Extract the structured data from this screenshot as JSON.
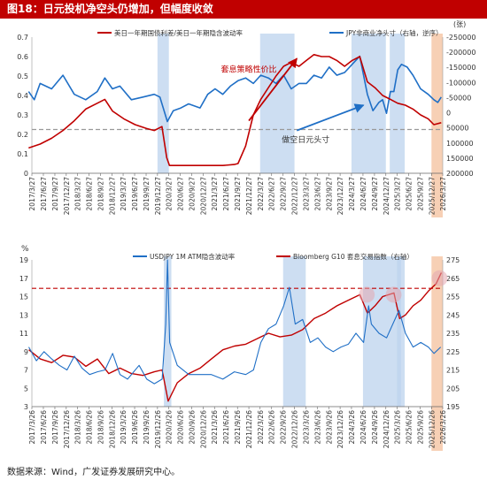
{
  "figure": {
    "title": "图18：日元投机净空头仍增加，但幅度收敛",
    "source": "数据来源：Wind，广发证券发展研究中心。"
  },
  "chart_data": [
    {
      "type": "line",
      "id": "top",
      "series": [
        {
          "name": "美日一年期国债利差/美日一年期隐含波动率",
          "axis": "left",
          "color": "#c00000"
        },
        {
          "name": "JPY非商业净头寸（右轴，逆序）",
          "axis": "right",
          "color": "#1f6fc6"
        }
      ],
      "x_ticks": [
        "2017/3/27",
        "2017/6/27",
        "2017/9/27",
        "2017/12/27",
        "2018/3/27",
        "2018/6/27",
        "2018/9/27",
        "2018/12/27",
        "2019/3/27",
        "2019/6/27",
        "2019/9/27",
        "2019/12/27",
        "2020/3/27",
        "2020/6/27",
        "2020/9/27",
        "2020/12/27",
        "2021/3/27",
        "2021/6/27",
        "2021/9/27",
        "2021/12/27",
        "2022/3/27",
        "2022/6/27",
        "2022/9/27",
        "2022/12/27",
        "2023/3/27",
        "2023/6/27",
        "2023/9/27",
        "2023/12/27",
        "2024/3/27",
        "2024/6/27",
        "2024/9/27",
        "2024/12/27",
        "2025/3/27",
        "2025/6/27",
        "2025/9/27",
        "2025/12/27",
        "2026/3/27"
      ],
      "left_axis": {
        "ylim": [
          0,
          0.7
        ],
        "ticks": [
          "0",
          "0.1",
          "0.2",
          "0.3",
          "0.4",
          "0.5",
          "0.6",
          "0.7"
        ]
      },
      "right_axis": {
        "unit": "(张)",
        "ylim": [
          -250000,
          250000
        ],
        "inverted": true,
        "ticks": [
          "-250000",
          "-200000",
          "-150000",
          "-100000",
          "-50000",
          "0",
          "50000",
          "100000",
          "150000",
          "200000"
        ]
      },
      "reference_line": {
        "axis": "left",
        "value": 0.225
      },
      "shaded_periods": [
        {
          "start": "2019/12/27",
          "end": "2020/3/27"
        },
        {
          "start": "2022/3/27",
          "end": "2022/12/27"
        },
        {
          "start": "2024/3/27",
          "end": "2024/12/27"
        },
        {
          "start": "2025/1/27",
          "end": "2025/5/27"
        }
      ],
      "highlight_period": {
        "start": "2025/12/27",
        "end": "2026/3/27"
      },
      "annotations": [
        {
          "text": "套息策略性价比",
          "x_date": "2021/12/27",
          "y_left": 0.52,
          "color": "#c00000"
        },
        {
          "text": "做空日元头寸",
          "x_date": "2023/3/27",
          "y_left": 0.16,
          "color": "#333333"
        }
      ],
      "arrows": [
        {
          "from": [
            "2021/12/27",
            0.27
          ],
          "to": [
            "2023/1/15",
            0.59
          ],
          "color": "#c00000"
        },
        {
          "from": [
            "2023/1/15",
            0.22
          ],
          "to": [
            "2024/7/1",
            0.35
          ],
          "color": "#1f6fc6"
        }
      ],
      "red_points": [
        [
          "2017/3/1",
          0.13
        ],
        [
          "2017/6/1",
          0.15
        ],
        [
          "2017/9/1",
          0.18
        ],
        [
          "2017/12/1",
          0.22
        ],
        [
          "2018/3/1",
          0.27
        ],
        [
          "2018/6/1",
          0.33
        ],
        [
          "2018/9/1",
          0.36
        ],
        [
          "2018/11/1",
          0.38
        ],
        [
          "2019/1/1",
          0.32
        ],
        [
          "2019/4/1",
          0.28
        ],
        [
          "2019/7/1",
          0.25
        ],
        [
          "2019/10/1",
          0.23
        ],
        [
          "2019/12/1",
          0.22
        ],
        [
          "2020/2/1",
          0.24
        ],
        [
          "2020/3/10",
          0.08
        ],
        [
          "2020/4/1",
          0.04
        ],
        [
          "2020/8/1",
          0.04
        ],
        [
          "2020/12/1",
          0.04
        ],
        [
          "2021/6/1",
          0.04
        ],
        [
          "2021/9/1",
          0.045
        ],
        [
          "2021/10/1",
          0.05
        ],
        [
          "2021/12/1",
          0.14
        ],
        [
          "2022/2/1",
          0.3
        ],
        [
          "2022/4/1",
          0.38
        ],
        [
          "2022/6/1",
          0.44
        ],
        [
          "2022/8/1",
          0.5
        ],
        [
          "2022/10/1",
          0.55
        ],
        [
          "2022/12/1",
          0.57
        ],
        [
          "2023/2/1",
          0.55
        ],
        [
          "2023/4/1",
          0.58
        ],
        [
          "2023/6/1",
          0.61
        ],
        [
          "2023/8/1",
          0.6
        ],
        [
          "2023/10/1",
          0.6
        ],
        [
          "2023/12/1",
          0.58
        ],
        [
          "2024/2/1",
          0.55
        ],
        [
          "2024/4/1",
          0.58
        ],
        [
          "2024/6/1",
          0.6
        ],
        [
          "2024/8/1",
          0.47
        ],
        [
          "2024/10/1",
          0.44
        ],
        [
          "2024/12/1",
          0.4
        ],
        [
          "2025/2/1",
          0.38
        ],
        [
          "2025/4/1",
          0.36
        ],
        [
          "2025/6/1",
          0.35
        ],
        [
          "2025/8/1",
          0.33
        ],
        [
          "2025/10/1",
          0.3
        ],
        [
          "2025/12/1",
          0.28
        ],
        [
          "2026/1/15",
          0.25
        ],
        [
          "2026/3/15",
          0.26
        ]
      ],
      "blue_points": [
        [
          "2017/3/1",
          -50000
        ],
        [
          "2017/4/15",
          -20000
        ],
        [
          "2017/6/1",
          -80000
        ],
        [
          "2017/9/1",
          -60000
        ],
        [
          "2017/12/1",
          -110000
        ],
        [
          "2018/3/1",
          -40000
        ],
        [
          "2018/6/1",
          -20000
        ],
        [
          "2018/9/1",
          -50000
        ],
        [
          "2018/11/1",
          -100000
        ],
        [
          "2019/1/1",
          -60000
        ],
        [
          "2019/3/1",
          -70000
        ],
        [
          "2019/6/1",
          -20000
        ],
        [
          "2019/9/1",
          -30000
        ],
        [
          "2019/12/1",
          -40000
        ],
        [
          "2020/1/15",
          -30000
        ],
        [
          "2020/3/15",
          60000
        ],
        [
          "2020/5/1",
          20000
        ],
        [
          "2020/7/1",
          10000
        ],
        [
          "2020/9/1",
          -5000
        ],
        [
          "2020/12/1",
          10000
        ],
        [
          "2021/2/1",
          -40000
        ],
        [
          "2021/4/1",
          -60000
        ],
        [
          "2021/6/1",
          -40000
        ],
        [
          "2021/8/1",
          -70000
        ],
        [
          "2021/10/1",
          -90000
        ],
        [
          "2021/12/1",
          -100000
        ],
        [
          "2022/2/1",
          -80000
        ],
        [
          "2022/4/1",
          -110000
        ],
        [
          "2022/6/1",
          -100000
        ],
        [
          "2022/8/1",
          -80000
        ],
        [
          "2022/10/1",
          -110000
        ],
        [
          "2022/12/1",
          -60000
        ],
        [
          "2023/2/1",
          -80000
        ],
        [
          "2023/4/1",
          -80000
        ],
        [
          "2023/6/1",
          -110000
        ],
        [
          "2023/8/1",
          -100000
        ],
        [
          "2023/10/1",
          -140000
        ],
        [
          "2023/12/1",
          -110000
        ],
        [
          "2024/2/1",
          -120000
        ],
        [
          "2024/4/1",
          -150000
        ],
        [
          "2024/6/1",
          -180000
        ],
        [
          "2024/8/1",
          -40000
        ],
        [
          "2024/9/15",
          20000
        ],
        [
          "2024/11/1",
          -10000
        ],
        [
          "2024/12/1",
          -20000
        ],
        [
          "2025/1/1",
          30000
        ],
        [
          "2025/2/1",
          -50000
        ],
        [
          "2025/3/1",
          -50000
        ],
        [
          "2025/4/1",
          -130000
        ],
        [
          "2025/5/1",
          -150000
        ],
        [
          "2025/6/15",
          -140000
        ],
        [
          "2025/8/1",
          -110000
        ],
        [
          "2025/10/1",
          -60000
        ],
        [
          "2025/12/1",
          -40000
        ],
        [
          "2026/1/15",
          -20000
        ],
        [
          "2026/2/15",
          -10000
        ],
        [
          "2026/3/15",
          -30000
        ]
      ]
    },
    {
      "type": "line",
      "id": "bottom",
      "series": [
        {
          "name": "USDJPY 1M ATM隐含波动率",
          "axis": "left",
          "color": "#1f6fc6"
        },
        {
          "name": "Bloomberg G10 套息交易指数（右轴）",
          "axis": "right",
          "color": "#c00000"
        }
      ],
      "x_ticks": [
        "2017/3/26",
        "2017/6/26",
        "2017/9/26",
        "2017/12/26",
        "2018/3/26",
        "2018/6/26",
        "2018/9/26",
        "2018/12/26",
        "2019/3/26",
        "2019/6/26",
        "2019/9/26",
        "2019/12/26",
        "2020/3/26",
        "2020/6/26",
        "2020/9/26",
        "2020/12/26",
        "2021/3/26",
        "2021/6/26",
        "2021/9/26",
        "2021/12/26",
        "2022/3/26",
        "2022/6/26",
        "2022/9/26",
        "2022/12/26",
        "2023/3/26",
        "2023/6/26",
        "2023/9/26",
        "2023/12/26",
        "2024/3/26",
        "2024/6/26",
        "2024/9/26",
        "2024/12/26",
        "2025/3/26",
        "2025/6/26",
        "2025/9/26",
        "2025/12/26",
        "2026/3/26"
      ],
      "left_axis": {
        "unit": "%",
        "ylim": [
          3,
          19
        ],
        "ticks": [
          "3",
          "5",
          "7",
          "9",
          "11",
          "13",
          "15",
          "17",
          "19"
        ]
      },
      "right_axis": {
        "ylim": [
          195,
          275
        ],
        "ticks": [
          "195",
          "205",
          "215",
          "225",
          "235",
          "245",
          "255",
          "265",
          "275"
        ]
      },
      "reference_line": {
        "axis": "left",
        "value": 15.9
      },
      "shaded_periods": [
        {
          "start": "2020/2/15",
          "end": "2020/4/15"
        },
        {
          "start": "2022/9/26",
          "end": "2023/3/26"
        },
        {
          "start": "2024/6/26",
          "end": "2025/4/26"
        },
        {
          "start": "2025/3/26",
          "end": "2025/5/26"
        }
      ],
      "highlight_period": {
        "start": "2025/12/26",
        "end": "2026/3/26"
      },
      "circles": [
        {
          "x_date": "2024/7/26",
          "y_right": 256
        },
        {
          "x_date": "2025/2/26",
          "y_right": 256
        },
        {
          "x_date": "2026/3/1",
          "y_right": 265
        }
      ],
      "blue_points": [
        [
          "2017/3/1",
          9.5
        ],
        [
          "2017/5/1",
          8
        ],
        [
          "2017/7/1",
          9
        ],
        [
          "2017/9/1",
          8.2
        ],
        [
          "2017/11/1",
          7.5
        ],
        [
          "2018/1/1",
          7
        ],
        [
          "2018/3/1",
          8.5
        ],
        [
          "2018/5/1",
          7.2
        ],
        [
          "2018/7/1",
          6.5
        ],
        [
          "2018/9/1",
          6.8
        ],
        [
          "2018/11/1",
          7
        ],
        [
          "2019/1/1",
          8.8
        ],
        [
          "2019/3/1",
          6.5
        ],
        [
          "2019/5/1",
          6
        ],
        [
          "2019/8/1",
          7.5
        ],
        [
          "2019/10/1",
          6
        ],
        [
          "2019/12/1",
          5.5
        ],
        [
          "2020/2/1",
          6
        ],
        [
          "2020/3/1",
          12
        ],
        [
          "2020/3/15",
          19
        ],
        [
          "2020/4/1",
          10
        ],
        [
          "2020/6/1",
          7.5
        ],
        [
          "2020/9/1",
          6.5
        ],
        [
          "2020/12/1",
          6.5
        ],
        [
          "2021/3/1",
          6.5
        ],
        [
          "2021/6/1",
          6
        ],
        [
          "2021/9/1",
          6.8
        ],
        [
          "2021/12/1",
          6.5
        ],
        [
          "2022/2/1",
          7
        ],
        [
          "2022/4/1",
          10
        ],
        [
          "2022/6/1",
          11.5
        ],
        [
          "2022/8/1",
          12
        ],
        [
          "2022/10/1",
          14
        ],
        [
          "2022/11/15",
          16
        ],
        [
          "2023/1/1",
          12
        ],
        [
          "2023/3/1",
          12.5
        ],
        [
          "2023/5/1",
          10
        ],
        [
          "2023/7/1",
          10.5
        ],
        [
          "2023/9/1",
          9.5
        ],
        [
          "2023/11/1",
          9
        ],
        [
          "2024/1/1",
          9.5
        ],
        [
          "2024/3/1",
          9.8
        ],
        [
          "2024/5/1",
          11
        ],
        [
          "2024/7/1",
          10
        ],
        [
          "2024/8/10",
          14
        ],
        [
          "2024/9/1",
          12
        ],
        [
          "2024/11/1",
          11
        ],
        [
          "2025/1/1",
          10.5
        ],
        [
          "2025/4/10",
          13.5
        ],
        [
          "2025/6/1",
          11
        ],
        [
          "2025/8/1",
          9.5
        ],
        [
          "2025/10/1",
          10
        ],
        [
          "2025/12/1",
          9.5
        ],
        [
          "2026/1/15",
          8.8
        ],
        [
          "2026/3/10",
          9.5
        ]
      ],
      "red_points": [
        [
          "2017/3/1",
          226
        ],
        [
          "2017/6/1",
          221
        ],
        [
          "2017/9/1",
          219
        ],
        [
          "2017/12/1",
          223
        ],
        [
          "2018/3/1",
          222
        ],
        [
          "2018/6/1",
          217
        ],
        [
          "2018/9/1",
          221
        ],
        [
          "2018/12/1",
          213
        ],
        [
          "2019/3/1",
          216
        ],
        [
          "2019/6/1",
          213
        ],
        [
          "2019/9/1",
          212
        ],
        [
          "2019/12/1",
          214
        ],
        [
          "2020/2/1",
          215
        ],
        [
          "2020/3/20",
          198
        ],
        [
          "2020/6/1",
          208
        ],
        [
          "2020/9/1",
          213
        ],
        [
          "2020/12/1",
          216
        ],
        [
          "2021/3/1",
          221
        ],
        [
          "2021/6/1",
          226
        ],
        [
          "2021/9/1",
          228
        ],
        [
          "2021/12/1",
          229
        ],
        [
          "2022/3/1",
          232
        ],
        [
          "2022/6/1",
          235
        ],
        [
          "2022/9/1",
          233
        ],
        [
          "2022/12/1",
          234
        ],
        [
          "2023/3/1",
          237
        ],
        [
          "2023/6/1",
          243
        ],
        [
          "2023/9/1",
          246
        ],
        [
          "2023/12/1",
          250
        ],
        [
          "2024/3/1",
          253
        ],
        [
          "2024/6/1",
          256
        ],
        [
          "2024/8/1",
          246
        ],
        [
          "2024/10/1",
          250
        ],
        [
          "2024/12/1",
          255
        ],
        [
          "2025/3/1",
          257
        ],
        [
          "2025/4/15",
          243
        ],
        [
          "2025/6/1",
          245
        ],
        [
          "2025/8/1",
          250
        ],
        [
          "2025/10/1",
          253
        ],
        [
          "2025/12/1",
          258
        ],
        [
          "2026/2/1",
          262
        ],
        [
          "2026/3/15",
          268
        ]
      ]
    }
  ]
}
